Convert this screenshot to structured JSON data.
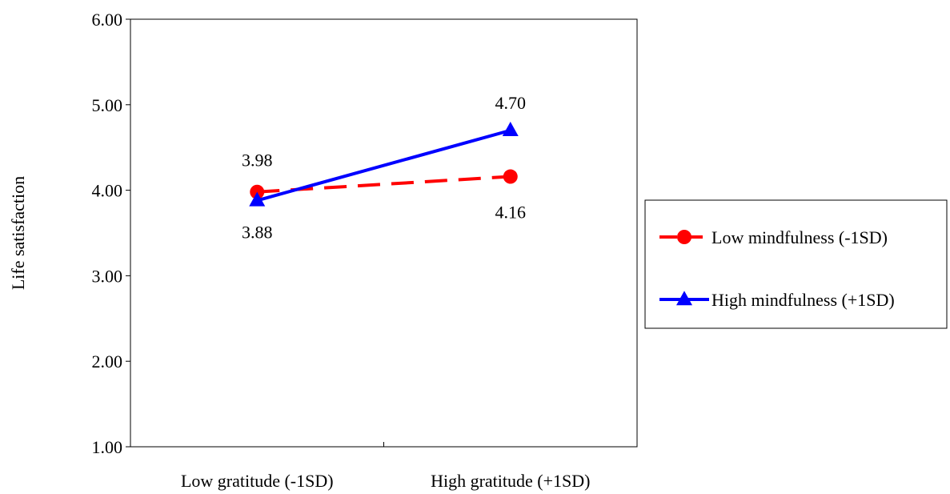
{
  "chart_data": {
    "type": "line",
    "categories": [
      "Low gratitude (-1SD)",
      "High gratitude (+1SD)"
    ],
    "ylabel": "Life satisfaction",
    "ylim": [
      1.0,
      6.0
    ],
    "yticks": [
      "1.00",
      "2.00",
      "3.00",
      "4.00",
      "5.00",
      "6.00"
    ],
    "grid": false,
    "legend_position": "right",
    "series": [
      {
        "name": "Low mindfulness (-1SD)",
        "values": [
          3.98,
          4.16
        ],
        "labels": [
          "3.98",
          "4.16"
        ],
        "color": "#ff0000",
        "marker": "circle",
        "dash": true
      },
      {
        "name": "High mindfulness (+1SD)",
        "values": [
          3.88,
          4.7
        ],
        "labels": [
          "3.88",
          "4.70"
        ],
        "color": "#0000ff",
        "marker": "triangle",
        "dash": false
      }
    ]
  }
}
